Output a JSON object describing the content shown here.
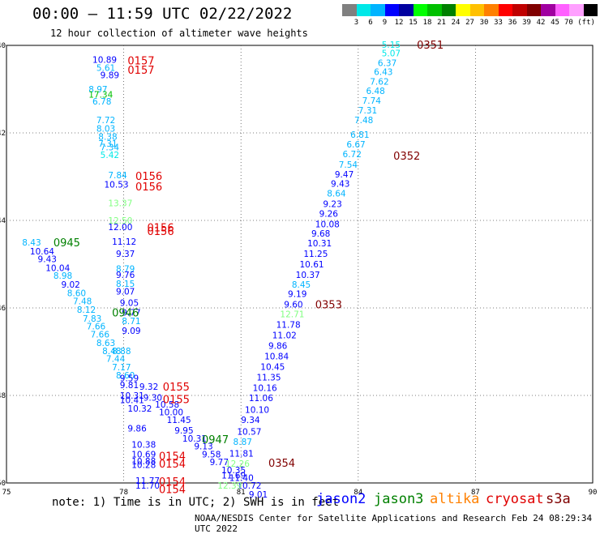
{
  "header": {
    "title": "00:00 — 11:59 UTC 02/22/2022",
    "subtitle": "12 hour collection of altimeter wave heights"
  },
  "colorbar": {
    "colors": [
      "#808080",
      "#00e8e8",
      "#00b4ff",
      "#0000ff",
      "#0000a0",
      "#00ff00",
      "#00c000",
      "#008000",
      "#ffff00",
      "#ffc000",
      "#ff8000",
      "#ff0000",
      "#c00000",
      "#800000",
      "#a000a0",
      "#ff60ff",
      "#ffa0ff",
      "#000000"
    ],
    "labels": [
      "3",
      "6",
      "9",
      "12",
      "15",
      "18",
      "21",
      "24",
      "27",
      "30",
      "33",
      "36",
      "39",
      "42",
      "45",
      "70 (ft)"
    ]
  },
  "map": {
    "lat_ticks": [
      "40",
      "42",
      "44",
      "46",
      "48",
      "50"
    ],
    "lon_ticks": [
      "75",
      "78",
      "81",
      "84",
      "87",
      "90"
    ]
  },
  "chart_data": {
    "type": "scatter",
    "lon_range": [
      75,
      90
    ],
    "lat_range": [
      40,
      50
    ],
    "grid": true,
    "swh_points": [
      {
        "t": "10.89",
        "lon": 77.2,
        "lat": 40.32,
        "c": "#0000ff"
      },
      {
        "t": "5.61",
        "lon": 77.3,
        "lat": 40.51,
        "c": "#00b4ff"
      },
      {
        "t": "9.89",
        "lon": 77.4,
        "lat": 40.68,
        "c": "#0000ff"
      },
      {
        "t": "8.97",
        "lon": 77.1,
        "lat": 41.0,
        "c": "#00b4ff"
      },
      {
        "t": "17.34",
        "lon": 77.1,
        "lat": 41.12,
        "c": "#00c000"
      },
      {
        "t": "6.78",
        "lon": 77.2,
        "lat": 41.28,
        "c": "#00b4ff"
      },
      {
        "t": "7.72",
        "lon": 77.3,
        "lat": 41.7,
        "c": "#00b4ff"
      },
      {
        "t": "8.03",
        "lon": 77.3,
        "lat": 41.9,
        "c": "#00b4ff"
      },
      {
        "t": "8.38",
        "lon": 77.35,
        "lat": 42.08,
        "c": "#00b4ff"
      },
      {
        "t": "7.31",
        "lon": 77.35,
        "lat": 42.24,
        "c": "#00b4ff"
      },
      {
        "t": "7.34",
        "lon": 77.4,
        "lat": 42.32,
        "c": "#00b4ff"
      },
      {
        "t": "5.42",
        "lon": 77.4,
        "lat": 42.5,
        "c": "#00e8e8"
      },
      {
        "t": "7.84",
        "lon": 77.6,
        "lat": 42.96,
        "c": "#00b4ff"
      },
      {
        "t": "10.53",
        "lon": 77.5,
        "lat": 43.18,
        "c": "#0000ff"
      },
      {
        "t": "13.37",
        "lon": 77.6,
        "lat": 43.6,
        "c": "#80ff80"
      },
      {
        "t": "12.50",
        "lon": 77.6,
        "lat": 44.0,
        "c": "#80ff80"
      },
      {
        "t": "12.00",
        "lon": 77.6,
        "lat": 44.15,
        "c": "#0000ff"
      },
      {
        "t": "11.12",
        "lon": 77.7,
        "lat": 44.48,
        "c": "#0000ff"
      },
      {
        "t": "9.37",
        "lon": 77.8,
        "lat": 44.76,
        "c": "#0000ff"
      },
      {
        "t": "8.79",
        "lon": 77.8,
        "lat": 45.1,
        "c": "#00b4ff"
      },
      {
        "t": "9.76",
        "lon": 77.8,
        "lat": 45.24,
        "c": "#0000ff"
      },
      {
        "t": "8.15",
        "lon": 77.8,
        "lat": 45.44,
        "c": "#00b4ff"
      },
      {
        "t": "9.07",
        "lon": 77.8,
        "lat": 45.62,
        "c": "#0000ff"
      },
      {
        "t": "9.05",
        "lon": 77.9,
        "lat": 45.88,
        "c": "#0000ff"
      },
      {
        "t": "8.43",
        "lon": 75.4,
        "lat": 44.5,
        "c": "#00b4ff"
      },
      {
        "t": "10.64",
        "lon": 75.6,
        "lat": 44.7,
        "c": "#0000ff"
      },
      {
        "t": "9.43",
        "lon": 75.8,
        "lat": 44.88,
        "c": "#0000ff"
      },
      {
        "t": "10.04",
        "lon": 76.0,
        "lat": 45.08,
        "c": "#0000ff"
      },
      {
        "t": "8.98",
        "lon": 76.2,
        "lat": 45.26,
        "c": "#00b4ff"
      },
      {
        "t": "9.02",
        "lon": 76.4,
        "lat": 45.46,
        "c": "#0000ff"
      },
      {
        "t": "8.60",
        "lon": 76.55,
        "lat": 45.66,
        "c": "#00b4ff"
      },
      {
        "t": "7.48",
        "lon": 76.7,
        "lat": 45.84,
        "c": "#00b4ff"
      },
      {
        "t": "8.12",
        "lon": 76.8,
        "lat": 46.04,
        "c": "#00b4ff"
      },
      {
        "t": "7.83",
        "lon": 76.95,
        "lat": 46.24,
        "c": "#00b4ff"
      },
      {
        "t": "7.66",
        "lon": 77.05,
        "lat": 46.42,
        "c": "#00b4ff"
      },
      {
        "t": "7.66",
        "lon": 77.15,
        "lat": 46.6,
        "c": "#00b4ff"
      },
      {
        "t": "8.63",
        "lon": 77.3,
        "lat": 46.8,
        "c": "#00b4ff"
      },
      {
        "t": "8.48",
        "lon": 77.45,
        "lat": 46.98,
        "c": "#00b4ff"
      },
      {
        "t": "8.88",
        "lon": 77.7,
        "lat": 46.98,
        "c": "#00b4ff"
      },
      {
        "t": "7.44",
        "lon": 77.55,
        "lat": 47.16,
        "c": "#00b4ff"
      },
      {
        "t": "7.17",
        "lon": 77.7,
        "lat": 47.35,
        "c": "#00b4ff"
      },
      {
        "t": "8.60",
        "lon": 77.8,
        "lat": 47.54,
        "c": "#00b4ff"
      },
      {
        "t": "9.77",
        "lon": 77.95,
        "lat": 46.1,
        "c": "#0000ff"
      },
      {
        "t": "8.71",
        "lon": 77.95,
        "lat": 46.3,
        "c": "#00b4ff"
      },
      {
        "t": "9.09",
        "lon": 77.95,
        "lat": 46.52,
        "c": "#0000ff"
      },
      {
        "t": "9.59",
        "lon": 77.9,
        "lat": 47.6,
        "c": "#0000ff"
      },
      {
        "t": "9.81",
        "lon": 77.9,
        "lat": 47.76,
        "c": "#0000ff"
      },
      {
        "t": "9.32",
        "lon": 78.4,
        "lat": 47.8,
        "c": "#0000ff"
      },
      {
        "t": "10.31",
        "lon": 77.9,
        "lat": 48.0,
        "c": "#0000ff"
      },
      {
        "t": "10.41",
        "lon": 77.9,
        "lat": 48.1,
        "c": "#0000ff"
      },
      {
        "t": "9.30",
        "lon": 78.5,
        "lat": 48.05,
        "c": "#0000ff"
      },
      {
        "t": "10.58",
        "lon": 78.8,
        "lat": 48.2,
        "c": "#0000ff"
      },
      {
        "t": "10.32",
        "lon": 78.1,
        "lat": 48.3,
        "c": "#0000ff"
      },
      {
        "t": "10.00",
        "lon": 78.9,
        "lat": 48.38,
        "c": "#0000ff"
      },
      {
        "t": "11.45",
        "lon": 79.1,
        "lat": 48.56,
        "c": "#0000ff"
      },
      {
        "t": "9.86",
        "lon": 78.1,
        "lat": 48.75,
        "c": "#0000ff"
      },
      {
        "t": "9.95",
        "lon": 79.3,
        "lat": 48.8,
        "c": "#0000ff"
      },
      {
        "t": "10.31",
        "lon": 79.5,
        "lat": 48.98,
        "c": "#0000ff"
      },
      {
        "t": "9.13",
        "lon": 79.8,
        "lat": 49.16,
        "c": "#0000ff"
      },
      {
        "t": "10.38",
        "lon": 78.2,
        "lat": 49.12,
        "c": "#0000ff"
      },
      {
        "t": "9.58",
        "lon": 80.0,
        "lat": 49.34,
        "c": "#0000ff"
      },
      {
        "t": "10.69",
        "lon": 78.2,
        "lat": 49.34,
        "c": "#0000ff"
      },
      {
        "t": "10.88",
        "lon": 78.2,
        "lat": 49.5,
        "c": "#0000ff"
      },
      {
        "t": "10.28",
        "lon": 78.2,
        "lat": 49.58,
        "c": "#0000ff"
      },
      {
        "t": "9.77",
        "lon": 80.2,
        "lat": 49.52,
        "c": "#0000ff"
      },
      {
        "t": "10.35",
        "lon": 80.5,
        "lat": 49.7,
        "c": "#0000ff"
      },
      {
        "t": "11.40",
        "lon": 80.7,
        "lat": 49.88,
        "c": "#0000ff"
      },
      {
        "t": "11.77",
        "lon": 78.3,
        "lat": 49.94,
        "c": "#0000ff"
      },
      {
        "t": "11.70",
        "lon": 78.3,
        "lat": 50.06,
        "c": "#0000ff"
      },
      {
        "t": "10.72",
        "lon": 80.9,
        "lat": 50.06,
        "c": "#0000ff"
      },
      {
        "t": "9.01",
        "lon": 81.2,
        "lat": 50.26,
        "c": "#0000ff"
      },
      {
        "t": "5.15",
        "lon": 84.6,
        "lat": 39.98,
        "c": "#00e8e8"
      },
      {
        "t": "5.07",
        "lon": 84.6,
        "lat": 40.18,
        "c": "#00e8e8"
      },
      {
        "t": "6.37",
        "lon": 84.5,
        "lat": 40.4,
        "c": "#00b4ff"
      },
      {
        "t": "6.43",
        "lon": 84.4,
        "lat": 40.6,
        "c": "#00b4ff"
      },
      {
        "t": "7.62",
        "lon": 84.3,
        "lat": 40.82,
        "c": "#00b4ff"
      },
      {
        "t": "6.48",
        "lon": 84.2,
        "lat": 41.04,
        "c": "#00b4ff"
      },
      {
        "t": "7.74",
        "lon": 84.1,
        "lat": 41.26,
        "c": "#00b4ff"
      },
      {
        "t": "7.31",
        "lon": 84.0,
        "lat": 41.48,
        "c": "#00b4ff"
      },
      {
        "t": "7.48",
        "lon": 83.9,
        "lat": 41.7,
        "c": "#00b4ff"
      },
      {
        "t": "6.81",
        "lon": 83.8,
        "lat": 42.04,
        "c": "#00b4ff"
      },
      {
        "t": "6.67",
        "lon": 83.7,
        "lat": 42.26,
        "c": "#00b4ff"
      },
      {
        "t": "6.72",
        "lon": 83.6,
        "lat": 42.48,
        "c": "#00b4ff"
      },
      {
        "t": "7.54",
        "lon": 83.5,
        "lat": 42.72,
        "c": "#00b4ff"
      },
      {
        "t": "9.47",
        "lon": 83.4,
        "lat": 42.94,
        "c": "#0000ff"
      },
      {
        "t": "9.43",
        "lon": 83.3,
        "lat": 43.16,
        "c": "#0000ff"
      },
      {
        "t": "8.64",
        "lon": 83.2,
        "lat": 43.38,
        "c": "#00b4ff"
      },
      {
        "t": "9.23",
        "lon": 83.1,
        "lat": 43.62,
        "c": "#0000ff"
      },
      {
        "t": "9.26",
        "lon": 83.0,
        "lat": 43.84,
        "c": "#0000ff"
      },
      {
        "t": "10.08",
        "lon": 82.9,
        "lat": 44.08,
        "c": "#0000ff"
      },
      {
        "t": "9.68",
        "lon": 82.8,
        "lat": 44.3,
        "c": "#0000ff"
      },
      {
        "t": "10.31",
        "lon": 82.7,
        "lat": 44.52,
        "c": "#0000ff"
      },
      {
        "t": "11.25",
        "lon": 82.6,
        "lat": 44.76,
        "c": "#0000ff"
      },
      {
        "t": "10.61",
        "lon": 82.5,
        "lat": 45.0,
        "c": "#0000ff"
      },
      {
        "t": "10.37",
        "lon": 82.4,
        "lat": 45.24,
        "c": "#0000ff"
      },
      {
        "t": "8.45",
        "lon": 82.3,
        "lat": 45.46,
        "c": "#00b4ff"
      },
      {
        "t": "9.19",
        "lon": 82.2,
        "lat": 45.68,
        "c": "#0000ff"
      },
      {
        "t": "9.60",
        "lon": 82.1,
        "lat": 45.92,
        "c": "#0000ff"
      },
      {
        "t": "12.71",
        "lon": 82.0,
        "lat": 46.14,
        "c": "#80ff80"
      },
      {
        "t": "11.78",
        "lon": 81.9,
        "lat": 46.38,
        "c": "#0000ff"
      },
      {
        "t": "11.02",
        "lon": 81.8,
        "lat": 46.62,
        "c": "#0000ff"
      },
      {
        "t": "9.86",
        "lon": 81.7,
        "lat": 46.86,
        "c": "#0000ff"
      },
      {
        "t": "10.84",
        "lon": 81.6,
        "lat": 47.1,
        "c": "#0000ff"
      },
      {
        "t": "10.45",
        "lon": 81.5,
        "lat": 47.34,
        "c": "#0000ff"
      },
      {
        "t": "11.35",
        "lon": 81.4,
        "lat": 47.58,
        "c": "#0000ff"
      },
      {
        "t": "10.16",
        "lon": 81.3,
        "lat": 47.82,
        "c": "#0000ff"
      },
      {
        "t": "11.06",
        "lon": 81.2,
        "lat": 48.06,
        "c": "#0000ff"
      },
      {
        "t": "10.10",
        "lon": 81.1,
        "lat": 48.32,
        "c": "#0000ff"
      },
      {
        "t": "9.34",
        "lon": 81.0,
        "lat": 48.56,
        "c": "#0000ff"
      },
      {
        "t": "10.57",
        "lon": 80.9,
        "lat": 48.82,
        "c": "#0000ff"
      },
      {
        "t": "8.87",
        "lon": 80.8,
        "lat": 49.06,
        "c": "#00b4ff"
      },
      {
        "t": "11.81",
        "lon": 80.7,
        "lat": 49.32,
        "c": "#0000ff"
      },
      {
        "t": "12.26",
        "lon": 80.6,
        "lat": 49.56,
        "c": "#80ff80"
      },
      {
        "t": "11.69",
        "lon": 80.5,
        "lat": 49.82,
        "c": "#0000ff"
      },
      {
        "t": "12.39",
        "lon": 80.4,
        "lat": 50.06,
        "c": "#80ff80"
      }
    ],
    "time_labels": [
      {
        "t": "0157",
        "lon": 78.1,
        "lat": 40.34,
        "c": "#e00000"
      },
      {
        "t": "0157",
        "lon": 78.1,
        "lat": 40.56,
        "c": "#e00000"
      },
      {
        "t": "0156",
        "lon": 78.3,
        "lat": 42.98,
        "c": "#e00000"
      },
      {
        "t": "0156",
        "lon": 78.3,
        "lat": 43.22,
        "c": "#e00000"
      },
      {
        "t": "0156",
        "lon": 78.6,
        "lat": 44.16,
        "c": "#e00000"
      },
      {
        "t": "0156",
        "lon": 78.6,
        "lat": 44.24,
        "c": "#e00000"
      },
      {
        "t": "0155",
        "lon": 79.0,
        "lat": 47.8,
        "c": "#e00000"
      },
      {
        "t": "0155",
        "lon": 79.0,
        "lat": 48.08,
        "c": "#e00000"
      },
      {
        "t": "0154",
        "lon": 78.9,
        "lat": 49.38,
        "c": "#e00000"
      },
      {
        "t": "0154",
        "lon": 78.9,
        "lat": 49.56,
        "c": "#e00000"
      },
      {
        "t": "0154",
        "lon": 78.9,
        "lat": 49.96,
        "c": "#e00000"
      },
      {
        "t": "0154",
        "lon": 78.9,
        "lat": 50.14,
        "c": "#e00000"
      },
      {
        "t": "0945",
        "lon": 76.2,
        "lat": 44.5,
        "c": "#008000"
      },
      {
        "t": "0946",
        "lon": 77.7,
        "lat": 46.1,
        "c": "#008000"
      },
      {
        "t": "0947",
        "lon": 80.0,
        "lat": 49.0,
        "c": "#008000"
      },
      {
        "t": "0351",
        "lon": 85.5,
        "lat": 39.98,
        "c": "#800000"
      },
      {
        "t": "0352",
        "lon": 84.9,
        "lat": 42.52,
        "c": "#800000"
      },
      {
        "t": "0353",
        "lon": 82.9,
        "lat": 45.92,
        "c": "#800000"
      },
      {
        "t": "0354",
        "lon": 81.7,
        "lat": 49.54,
        "c": "#800000"
      }
    ]
  },
  "footer": {
    "note": "note: 1) Time is in UTC; 2) SWH is in feet",
    "satellites": [
      {
        "name": "jason2",
        "color": "#0000ff",
        "x": 390
      },
      {
        "name": "jason3",
        "color": "#008000",
        "x": 461
      },
      {
        "name": "altika",
        "color": "#ff8000",
        "x": 530
      },
      {
        "name": "cryosat",
        "color": "#e00000",
        "x": 599
      },
      {
        "name": "s3a",
        "color": "#800000",
        "x": 673
      }
    ],
    "credit": "NOAA/NESDIS Center for Satellite Applications and Research   Feb 24 08:29:34 UTC 2022"
  }
}
